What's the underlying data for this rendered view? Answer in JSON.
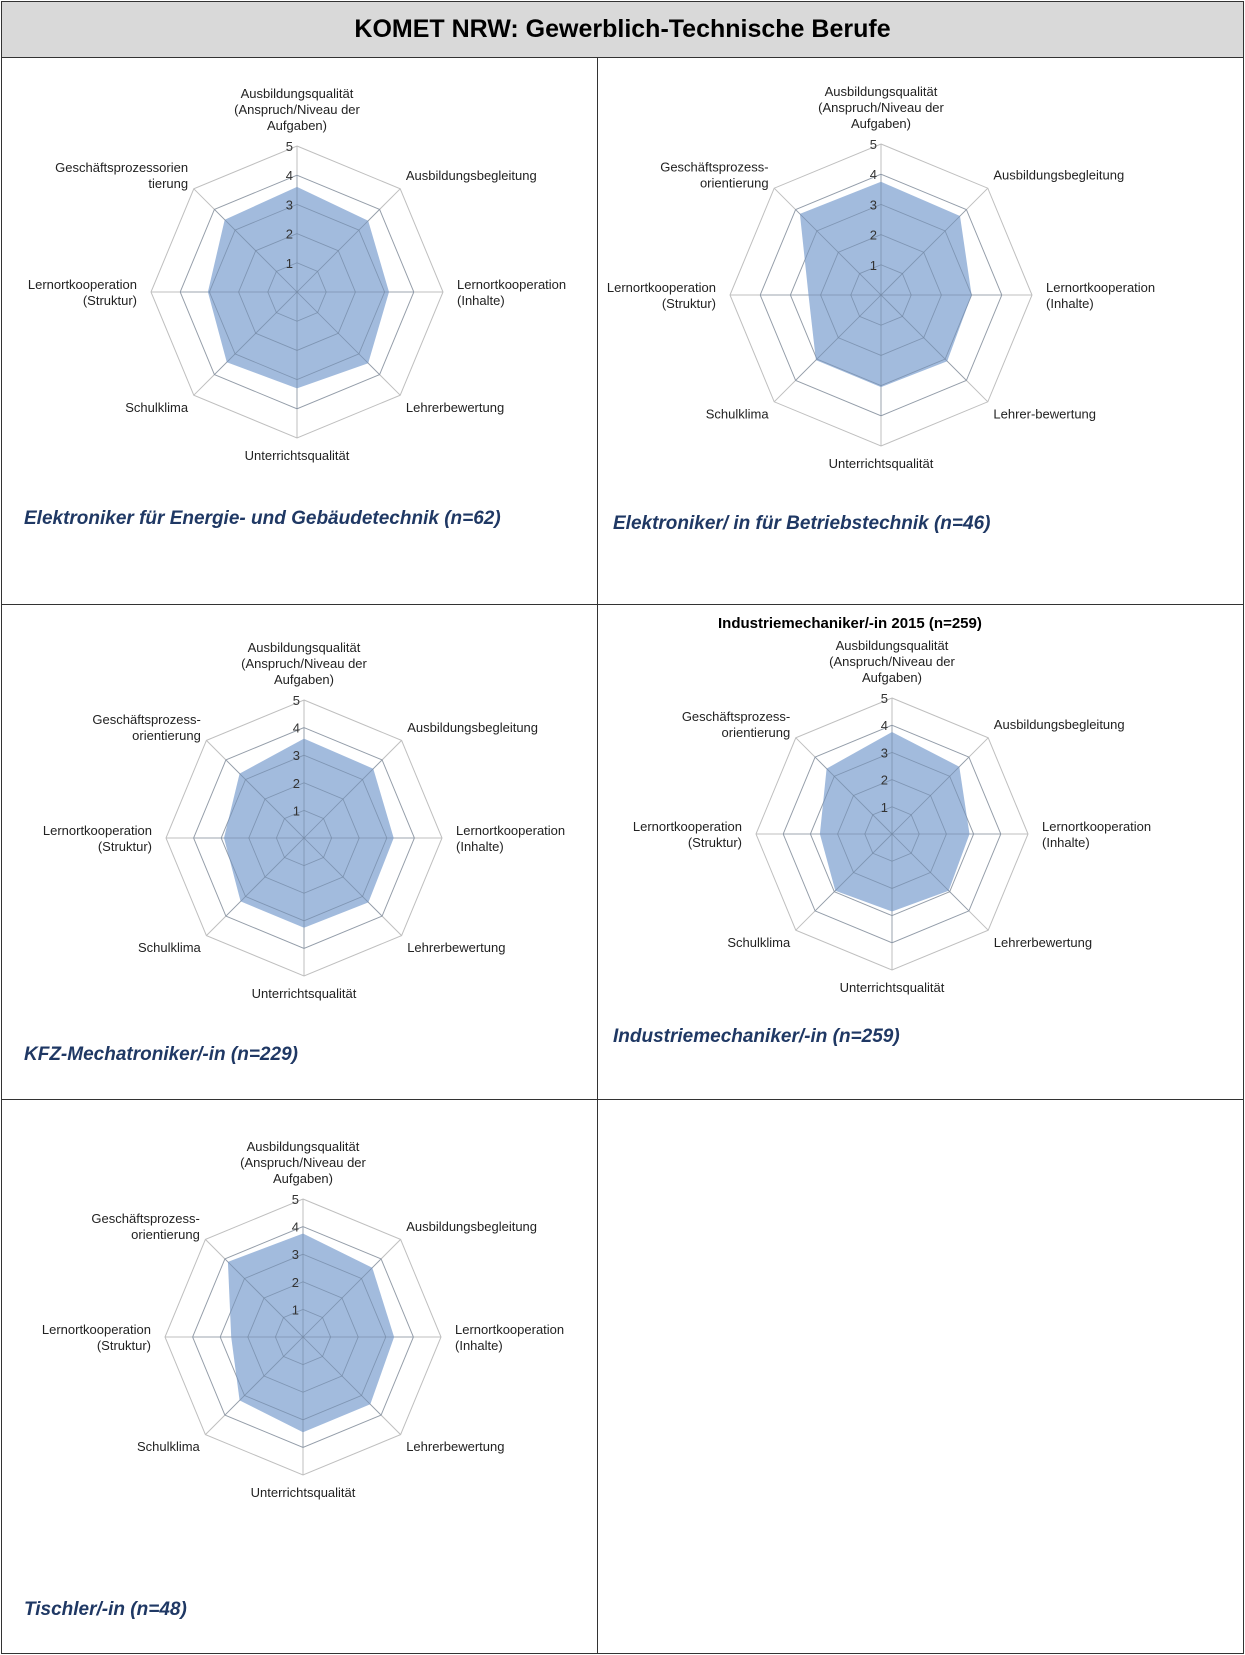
{
  "page_title": "KOMET NRW: Gewerblich-Technische Berufe",
  "chart_data": [
    {
      "type": "radar",
      "caption": "Elektroniker für Energie- und Gebäudetechnik (n=62)",
      "categories": [
        [
          "Ausbildungsqualität",
          "(Anspruch/Niveau der",
          "Aufgaben)"
        ],
        [
          "Ausbildungsbegleitung"
        ],
        [
          "Lernortkooperation",
          "(Inhalte)"
        ],
        [
          "Lehrerbewertung"
        ],
        [
          "Unterrichtsqualität"
        ],
        [
          "Schulklima"
        ],
        [
          "Lernortkooperation",
          "(Struktur)"
        ],
        [
          "Geschäftsprozessorien",
          "tierung"
        ]
      ],
      "scale_labels": [
        "1",
        "2",
        "3",
        "4",
        "5"
      ],
      "rmin": 1,
      "rmax": 5,
      "values": [
        3.6,
        3.45,
        3.15,
        3.45,
        3.3,
        3.4,
        3.05,
        3.5
      ],
      "fill_color": "#8eacd6"
    },
    {
      "type": "radar",
      "caption": "Elektroniker/ in für Betriebstechnik (n=46)",
      "categories": [
        [
          "Ausbildungsqualität",
          "(Anspruch/Niveau der",
          "Aufgaben)"
        ],
        [
          "Ausbildungsbegleitung"
        ],
        [
          "Lernortkooperation",
          "(Inhalte)"
        ],
        [
          "Lehrer-bewertung"
        ],
        [
          "Unterrichtsqualität"
        ],
        [
          "Schulklima"
        ],
        [
          "Lernortkooperation",
          "(Struktur)"
        ],
        [
          "Geschäftsprozess-",
          "orientierung"
        ]
      ],
      "scale_labels": [
        "1",
        "2",
        "3",
        "4",
        "5"
      ],
      "rmin": 1,
      "rmax": 5,
      "values": [
        3.75,
        3.7,
        3.0,
        3.1,
        3.05,
        3.05,
        2.4,
        3.8
      ],
      "fill_color": "#8eacd6"
    },
    {
      "type": "radar",
      "caption": "KFZ-Mechatroniker/-in (n=229)",
      "categories": [
        [
          "Ausbildungsqualität",
          "(Anspruch/Niveau der",
          "Aufgaben)"
        ],
        [
          "Ausbildungsbegleitung"
        ],
        [
          "Lernortkooperation",
          "(Inhalte)"
        ],
        [
          "Lehrerbewertung"
        ],
        [
          "Unterrichtsqualität"
        ],
        [
          "Schulklima"
        ],
        [
          "Lernortkooperation",
          "(Struktur)"
        ],
        [
          "Geschäftsprozess-",
          "orientierung"
        ]
      ],
      "scale_labels": [
        "1",
        "2",
        "3",
        "4",
        "5"
      ],
      "rmin": 1,
      "rmax": 5,
      "values": [
        3.6,
        3.55,
        3.25,
        3.3,
        3.25,
        3.25,
        2.9,
        3.3
      ],
      "fill_color": "#8eacd6"
    },
    {
      "type": "radar",
      "caption": "Industriemechaniker/-in (n=259)",
      "overlay_text": "Industriemechaniker/-in 2015 (n=259)",
      "categories": [
        [
          "Ausbildungsqualität",
          "(Anspruch/Niveau der",
          "Aufgaben)"
        ],
        [
          "Ausbildungsbegleitung"
        ],
        [
          "Lernortkooperation",
          "(Inhalte)"
        ],
        [
          "Lehrerbewertung"
        ],
        [
          "Unterrichtsqualität"
        ],
        [
          "Schulklima"
        ],
        [
          "Lernortkooperation",
          "(Struktur)"
        ],
        [
          "Geschäftsprozess-",
          "orientierung"
        ]
      ],
      "scale_labels": [
        "1",
        "2",
        "3",
        "4",
        "5"
      ],
      "rmin": 1,
      "rmax": 5,
      "values": [
        3.75,
        3.5,
        2.85,
        2.95,
        2.85,
        2.95,
        2.65,
        3.4
      ],
      "fill_color": "#8eacd6"
    },
    {
      "type": "radar",
      "caption": "Tischler/-in (n=48)",
      "categories": [
        [
          "Ausbildungsqualität",
          "(Anspruch/Niveau der",
          "Aufgaben)"
        ],
        [
          "Ausbildungsbegleitung"
        ],
        [
          "Lernortkooperation",
          "(Inhalte)"
        ],
        [
          "Lehrerbewertung"
        ],
        [
          "Unterrichtsqualität"
        ],
        [
          "Schulklima"
        ],
        [
          "Lernortkooperation",
          "(Struktur)"
        ],
        [
          "Geschäftsprozess-",
          "orientierung"
        ]
      ],
      "scale_labels": [
        "1",
        "2",
        "3",
        "4",
        "5"
      ],
      "rmin": 1,
      "rmax": 5,
      "values": [
        3.75,
        3.55,
        3.3,
        3.45,
        3.45,
        3.25,
        2.6,
        3.85
      ],
      "fill_color": "#8eacd6"
    }
  ]
}
